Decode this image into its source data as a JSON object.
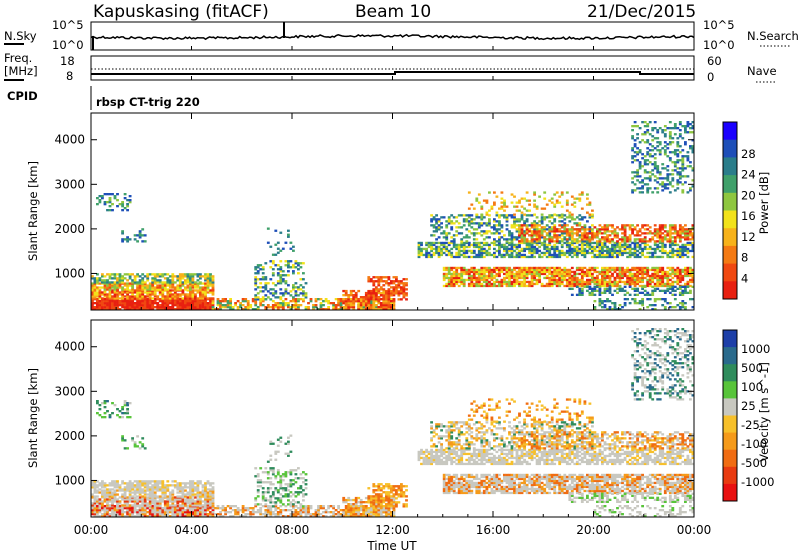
{
  "header": {
    "station": "Kapuskasing (fitACF)",
    "beam": "Beam 10",
    "date": "21/Dec/2015"
  },
  "top_panels": {
    "nsky_label": "N.Sky",
    "nsearch_label": "N.Search",
    "freq_label_1": "Freq.",
    "freq_label_2": "[MHz]",
    "nave_label": "Nave",
    "cpid_label": "CPID",
    "cpid_value": "rbsp CT-trig 220",
    "noise_left_ticks": [
      "10^5",
      "10^0"
    ],
    "noise_right_ticks": [
      "10^5",
      "10^0"
    ],
    "freq_left_ticks": [
      "18",
      "8"
    ],
    "freq_right_ticks": [
      "60",
      "0"
    ]
  },
  "chart_data": [
    {
      "type": "heatmap",
      "ylabel": "Slant Range [km]",
      "xlabel": "",
      "x_ticks": [
        "00:00",
        "04:00",
        "08:00",
        "12:00",
        "16:00",
        "20:00",
        "00:00"
      ],
      "y_ticks": [
        1000,
        2000,
        3000,
        4000
      ],
      "ylim": [
        180,
        4600
      ],
      "colorbar": {
        "label": "Power [dB]",
        "ticks": [
          "4",
          "8",
          "12",
          "16",
          "20",
          "24",
          "28"
        ],
        "colors": [
          "#1a00ff",
          "#1e4fb8",
          "#2a7d8a",
          "#3fa06a",
          "#8ec63f",
          "#f2e21a",
          "#f7b21a",
          "#f47a13",
          "#f04810",
          "#e82010"
        ]
      }
    },
    {
      "type": "heatmap",
      "ylabel": "Slant Range [km]",
      "xlabel": "Time UT",
      "x_ticks": [
        "00:00",
        "04:00",
        "08:00",
        "12:00",
        "16:00",
        "20:00",
        "00:00"
      ],
      "y_ticks": [
        1000,
        2000,
        3000,
        4000
      ],
      "ylim": [
        180,
        4600
      ],
      "colorbar": {
        "label": "Velocity [m s^-1]",
        "ticks": [
          "1000",
          "500",
          "100",
          "25",
          "-25",
          "-100",
          "-500",
          "-1000"
        ],
        "colors": [
          "#1d3fa8",
          "#2a6a8c",
          "#2f8c5c",
          "#58c43a",
          "#c8c8c0",
          "#f7c02a",
          "#f59a1a",
          "#f06c12",
          "#e83a10",
          "#e81010"
        ]
      }
    }
  ]
}
